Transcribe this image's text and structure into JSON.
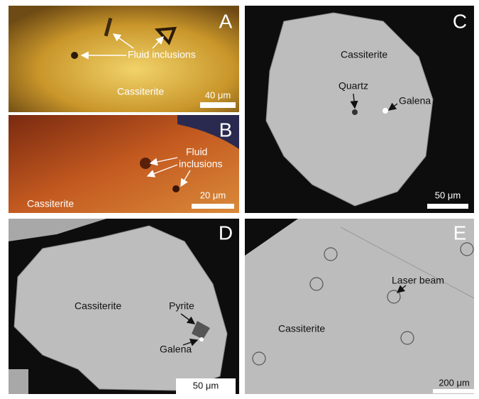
{
  "panels": [
    {
      "letter": "A",
      "labels": [
        "Fluid inclusions",
        "Cassiterite"
      ],
      "scale_bar": "40 μm"
    },
    {
      "letter": "B",
      "labels": [
        "Fluid",
        "inclusions",
        "Cassiterite"
      ],
      "scale_bar": "20 μm"
    },
    {
      "letter": "C",
      "labels": [
        "Cassiterite",
        "Quartz",
        "Galena"
      ],
      "scale_bar": "50 μm"
    },
    {
      "letter": "D",
      "labels": [
        "Cassiterite",
        "Pyrite",
        "Galena"
      ],
      "scale_bar": "50 μm"
    },
    {
      "letter": "E",
      "labels": [
        "Laser beam",
        "Cassiterite"
      ],
      "scale_bar": "200 μm"
    }
  ]
}
